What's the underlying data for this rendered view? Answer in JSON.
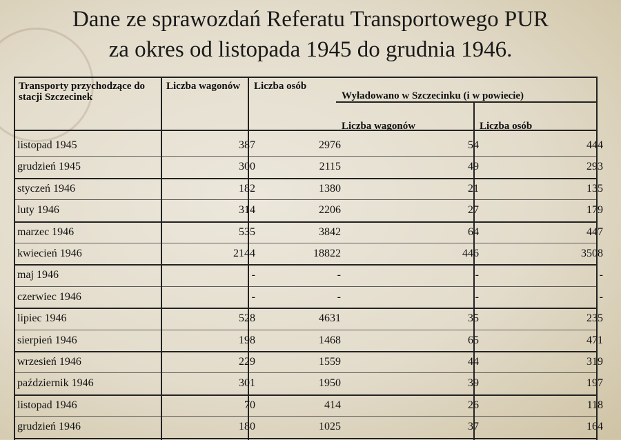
{
  "title": {
    "line1": "Dane ze sprawozdań Referatu Transportowego PUR",
    "line2": "za okres od listopada 1945 do grudnia 1946."
  },
  "table": {
    "headers": {
      "col1": "Transporty przychodzące do stacji Szczecinek",
      "col2": "Liczba wagonów",
      "col3": "Liczba osób",
      "group": "Wyładowano w Szczecinku (i w powiecie)",
      "col4": "Liczba wagonów",
      "col5": "Liczba osób"
    },
    "rows": [
      {
        "month": "listopad 1945",
        "wagons": "387",
        "persons": "2976",
        "unl_wagons": "54",
        "unl_persons": "444"
      },
      {
        "month": "grudzień 1945",
        "wagons": "300",
        "persons": "2115",
        "unl_wagons": "49",
        "unl_persons": "293"
      },
      {
        "month": "styczeń 1946",
        "wagons": "182",
        "persons": "1380",
        "unl_wagons": "21",
        "unl_persons": "135"
      },
      {
        "month": "luty 1946",
        "wagons": "314",
        "persons": "2206",
        "unl_wagons": "27",
        "unl_persons": "179"
      },
      {
        "month": "marzec 1946",
        "wagons": "535",
        "persons": "3842",
        "unl_wagons": "64",
        "unl_persons": "447"
      },
      {
        "month": "kwiecień 1946",
        "wagons": "2144",
        "persons": "18822",
        "unl_wagons": "446",
        "unl_persons": "3508"
      },
      {
        "month": "maj 1946",
        "wagons": "-",
        "persons": "-",
        "unl_wagons": "-",
        "unl_persons": "-"
      },
      {
        "month": "czerwiec 1946",
        "wagons": "-",
        "persons": "-",
        "unl_wagons": "-",
        "unl_persons": "-"
      },
      {
        "month": "lipiec 1946",
        "wagons": "528",
        "persons": "4631",
        "unl_wagons": "35",
        "unl_persons": "235"
      },
      {
        "month": "sierpień 1946",
        "wagons": "198",
        "persons": "1468",
        "unl_wagons": "65",
        "unl_persons": "471"
      },
      {
        "month": "wrzesień 1946",
        "wagons": "229",
        "persons": "1559",
        "unl_wagons": "44",
        "unl_persons": "319"
      },
      {
        "month": "październik 1946",
        "wagons": "301",
        "persons": "1950",
        "unl_wagons": "39",
        "unl_persons": "197"
      },
      {
        "month": "listopad 1946",
        "wagons": "70",
        "persons": "414",
        "unl_wagons": "26",
        "unl_persons": "118"
      },
      {
        "month": "grudzień 1946",
        "wagons": "180",
        "persons": "1025",
        "unl_wagons": "37",
        "unl_persons": "164"
      }
    ]
  }
}
